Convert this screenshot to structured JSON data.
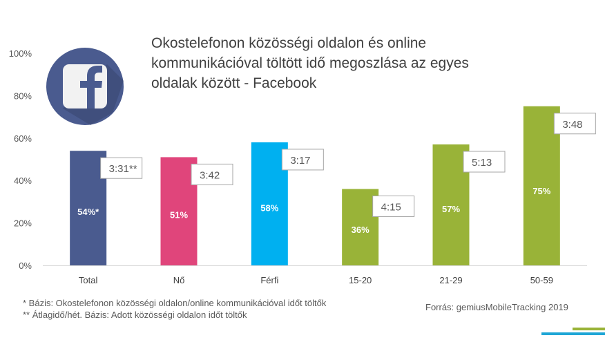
{
  "title_lines": [
    "Okostelefonon közösségi oldalon és online",
    "kommunikációval töltött idő megoszlása az egyes",
    "oldalak között - Facebook"
  ],
  "logo": {
    "icon": "facebook-logo-icon",
    "circle_color": "#4a5b8f",
    "shadow_color": "#3a4772",
    "tile_color": "#f2f2f2"
  },
  "chart_data": {
    "type": "bar",
    "title": "Okostelefonon közösségi oldalon és online kommunikációval töltött idő megoszlása az egyes oldalak között - Facebook",
    "categories": [
      "Total",
      "Nő",
      "Férfi",
      "15-20",
      "21-29",
      "50-59"
    ],
    "values": [
      54,
      51,
      58,
      36,
      57,
      75
    ],
    "value_labels": [
      "54%*",
      "51%",
      "58%",
      "36%",
      "57%",
      "75%"
    ],
    "time_labels": [
      "3:31**",
      "3:42",
      "3:17",
      "4:15",
      "5:13",
      "3:48"
    ],
    "colors": [
      "#4a5b8f",
      "#e0457b",
      "#00b0f0",
      "#99b338",
      "#99b338",
      "#99b338"
    ],
    "y_ticks": [
      "0%",
      "20%",
      "40%",
      "60%",
      "80%",
      "100%"
    ],
    "ylim": [
      0,
      100
    ],
    "grid": false,
    "legend": "none"
  },
  "footnotes": [
    "* Bázis: Okostelefonon közösségi oldalon/online kommunikációval időt töltők",
    "** Átlagidő/hét. Bázis: Adott közösségi oldalon időt töltők"
  ],
  "source": "Forrás: gemiusMobileTracking 2019"
}
